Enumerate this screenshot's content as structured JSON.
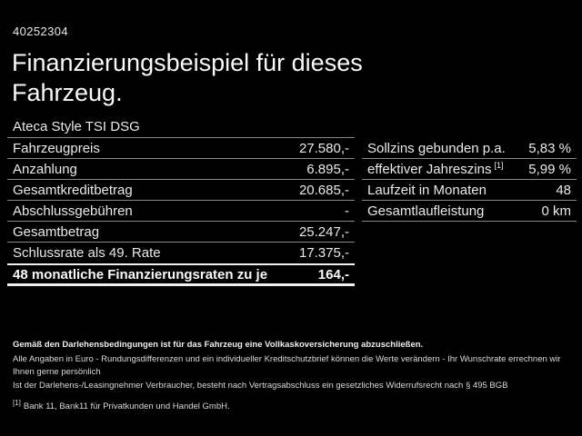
{
  "header": {
    "vehicle_id": "40252304",
    "title": "Finanzierungsbeispiel für dieses Fahrzeug.",
    "model": "Ateca Style TSI DSG"
  },
  "left_table": {
    "rows": [
      {
        "label": "Fahrzeugpreis",
        "value": "27.580,-"
      },
      {
        "label": "Anzahlung",
        "value": "6.895,-"
      },
      {
        "label": "Gesamtkreditbetrag",
        "value": "20.685,-"
      },
      {
        "label": "Abschlussgebühren",
        "value": "-"
      },
      {
        "label": "Gesamtbetrag",
        "value": "25.247,-"
      },
      {
        "label": "Schlussrate als 49. Rate",
        "value": "17.375,-"
      }
    ],
    "highlight": {
      "label": "48 monatliche Finanzierungsraten zu je",
      "value": "164,-"
    }
  },
  "right_table": {
    "rows": [
      {
        "label": "Sollzins gebunden p.a.",
        "value": "5,83 %"
      },
      {
        "label": "effektiver Jahreszins",
        "label_sup": "[1]",
        "value": "5,99 %"
      },
      {
        "label": "Laufzeit in Monaten",
        "value": "48"
      },
      {
        "label": "Gesamtlaufleistung",
        "value": "0 km"
      }
    ]
  },
  "footnotes": {
    "line1": "Gemäß den Darlehensbedingungen ist für das Fahrzeug eine Vollkaskoversicherung abzuschließen.",
    "line2": "Alle Angaben in Euro - Rundungsdifferenzen und ein individueller Kreditschutzbrief können die Werte verändern - Ihr Wunschrate errechnen wir Ihnen gerne persönlich",
    "line3": "Ist der Darlehens-/Leasingnehmer Verbraucher, besteht nach Vertragsabschluss ein gesetzliches Widerrufsrecht nach § 495 BGB",
    "bank_ref_sup": "[1]",
    "bank": "Bank 11, Bank11 für Privatkunden und Handel GmbH."
  },
  "colors": {
    "background": "#000000",
    "text": "#e9e9e9",
    "text_bright": "#fafafa",
    "separator": "#878787",
    "highlight_border": "#f0f0f0"
  }
}
